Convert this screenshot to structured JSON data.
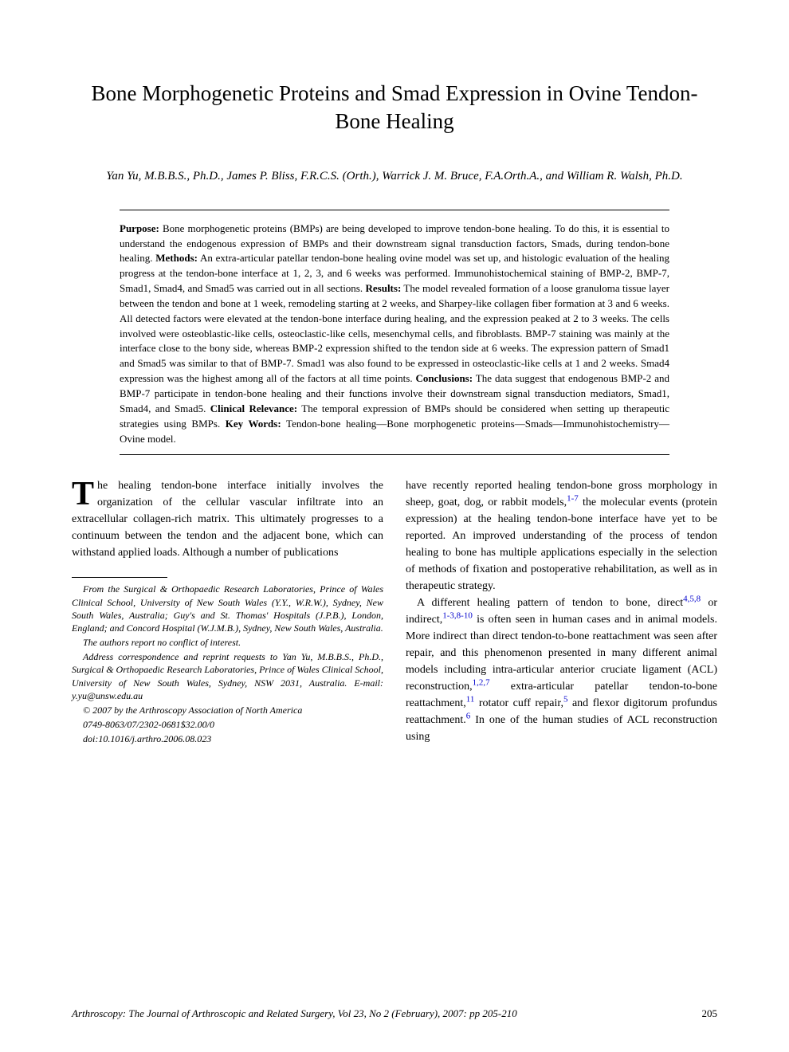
{
  "title": "Bone Morphogenetic Proteins and Smad Expression in Ovine Tendon-Bone Healing",
  "authors": "Yan Yu, M.B.B.S., Ph.D., James P. Bliss, F.R.C.S. (Orth.), Warrick J. M. Bruce, F.A.Orth.A., and William R. Walsh, Ph.D.",
  "abstract": {
    "purpose_label": "Purpose:",
    "purpose": " Bone morphogenetic proteins (BMPs) are being developed to improve tendon-bone healing. To do this, it is essential to understand the endogenous expression of BMPs and their downstream signal transduction factors, Smads, during tendon-bone healing. ",
    "methods_label": "Methods:",
    "methods": " An extra-articular patellar tendon-bone healing ovine model was set up, and histologic evaluation of the healing progress at the tendon-bone interface at 1, 2, 3, and 6 weeks was performed. Immunohistochemical staining of BMP-2, BMP-7, Smad1, Smad4, and Smad5 was carried out in all sections. ",
    "results_label": "Results:",
    "results": " The model revealed formation of a loose granuloma tissue layer between the tendon and bone at 1 week, remodeling starting at 2 weeks, and Sharpey-like collagen fiber formation at 3 and 6 weeks. All detected factors were elevated at the tendon-bone interface during healing, and the expression peaked at 2 to 3 weeks. The cells involved were osteoblastic-like cells, osteoclastic-like cells, mesenchymal cells, and fibroblasts. BMP-7 staining was mainly at the interface close to the bony side, whereas BMP-2 expression shifted to the tendon side at 6 weeks. The expression pattern of Smad1 and Smad5 was similar to that of BMP-7. Smad1 was also found to be expressed in osteoclastic-like cells at 1 and 2 weeks. Smad4 expression was the highest among all of the factors at all time points. ",
    "conclusions_label": "Conclusions:",
    "conclusions": " The data suggest that endogenous BMP-2 and BMP-7 participate in tendon-bone healing and their functions involve their downstream signal transduction mediators, Smad1, Smad4, and Smad5. ",
    "clinical_label": "Clinical Relevance:",
    "clinical": " The temporal expression of BMPs should be considered when setting up therapeutic strategies using BMPs. ",
    "keywords_label": "Key Words:",
    "keywords": " Tendon-bone healing—Bone morphogenetic proteins—Smads—Immunohistochemistry—Ovine model."
  },
  "body": {
    "col1_p1_dropcap": "T",
    "col1_p1": "he healing tendon-bone interface initially involves the organization of the cellular vascular infiltrate into an extracellular collagen-rich matrix. This ultimately progresses to a continuum between the tendon and the adjacent bone, which can withstand applied loads. Although a number of publications",
    "col2_p1_a": "have recently reported healing tendon-bone gross morphology in sheep, goat, dog, or rabbit models,",
    "col2_p1_ref1": "1-7",
    "col2_p1_b": " the molecular events (protein expression) at the healing tendon-bone interface have yet to be reported. An improved understanding of the process of tendon healing to bone has multiple applications especially in the selection of methods of fixation and postoperative rehabilitation, as well as in therapeutic strategy.",
    "col2_p2_a": "A different healing pattern of tendon to bone, direct",
    "col2_p2_ref1": "4,5,8",
    "col2_p2_b": " or indirect,",
    "col2_p2_ref2": "1-3,8-10",
    "col2_p2_c": " is often seen in human cases and in animal models. More indirect than direct tendon-to-bone reattachment was seen after repair, and this phenomenon presented in many different animal models including intra-articular anterior cruciate ligament (ACL) reconstruction,",
    "col2_p2_ref3": "1,2,7",
    "col2_p2_d": " extra-articular patellar tendon-to-bone reattachment,",
    "col2_p2_ref4": "11",
    "col2_p2_e": " rotator cuff repair,",
    "col2_p2_ref5": "5",
    "col2_p2_f": " and flexor digitorum profundus reattachment.",
    "col2_p2_ref6": "6",
    "col2_p2_g": " In one of the human studies of ACL reconstruction using"
  },
  "footnote": {
    "f1": "From the Surgical & Orthopaedic Research Laboratories, Prince of Wales Clinical School, University of New South Wales (Y.Y., W.R.W.), Sydney, New South Wales, Australia; Guy's and St. Thomas' Hospitals (J.P.B.), London, England; and Concord Hospital (W.J.M.B.), Sydney, New South Wales, Australia.",
    "f2": "The authors report no conflict of interest.",
    "f3": "Address correspondence and reprint requests to Yan Yu, M.B.B.S., Ph.D., Surgical & Orthopaedic Research Laboratories, Prince of Wales Clinical School, University of New South Wales, Sydney, NSW 2031, Australia. E-mail: y.yu@unsw.edu.au",
    "f4": "© 2007 by the Arthroscopy Association of North America",
    "f5": "0749-8063/07/2302-0681$32.00/0",
    "f6": "doi:10.1016/j.arthro.2006.08.023"
  },
  "footer": {
    "journal": "Arthroscopy: The Journal of Arthroscopic and Related Surgery, Vol 23, No 2 (February), 2007: pp 205-210",
    "page": "205"
  },
  "colors": {
    "text": "#000000",
    "link": "#0000cc",
    "background": "#ffffff"
  }
}
